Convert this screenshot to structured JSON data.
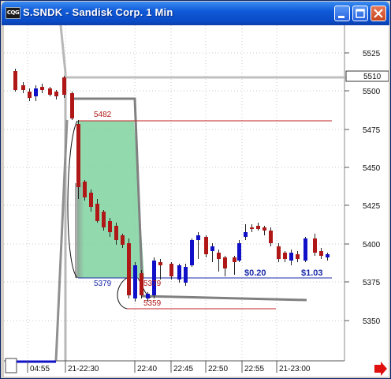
{
  "window": {
    "title": "S.SNDK - Sandisk Corp. 1 Min",
    "icon_label": "CQG",
    "buttons": [
      "minimize-icon",
      "maximize-icon",
      "close-icon"
    ]
  },
  "price_axis": {
    "ticks": [
      "5525",
      "5500",
      "5475",
      "5450",
      "5425",
      "5400",
      "5375",
      "5350"
    ],
    "current_price": "5510"
  },
  "time_axis": {
    "ticks": [
      "04:55",
      "21-22:30",
      "22:40",
      "22:45",
      "22:50",
      "22:55",
      "21-23:00"
    ]
  },
  "annotations": {
    "level_high": "5482",
    "level_mid_left": "5379",
    "level_mid_right": "5379",
    "level_low": "5359",
    "value_a": "$0.20",
    "value_b": "$1.03"
  },
  "colors": {
    "up": "#1010c8",
    "down": "#b01818",
    "band": "#7fd4a0",
    "label_red": "#b01818",
    "label_blue": "#1a2aa8"
  },
  "scroll_arrow_icon": "arrow-right-icon"
}
